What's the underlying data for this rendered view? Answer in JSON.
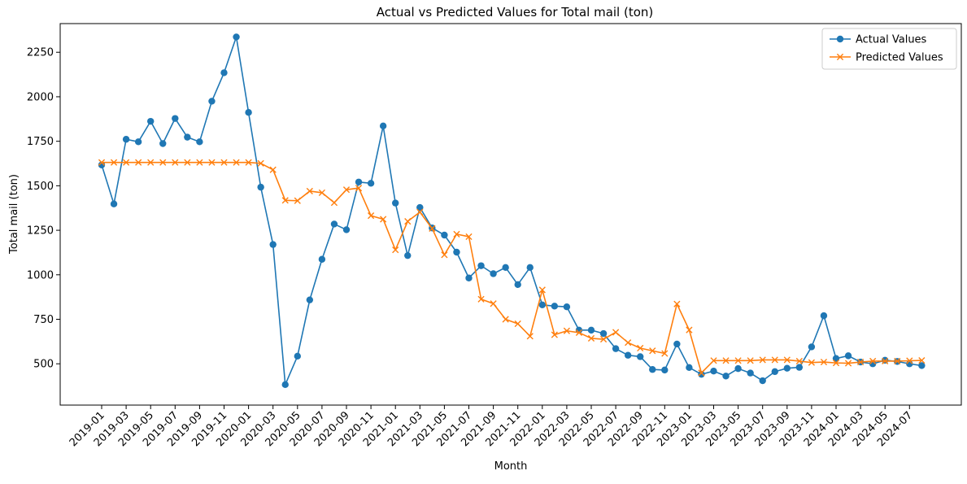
{
  "chart_data": {
    "type": "line",
    "title": "Actual vs Predicted Values for Total mail (ton)",
    "xlabel": "Month",
    "ylabel": "Total mail (ton)",
    "ylim": [
      268,
      2411
    ],
    "yticks": [
      500,
      750,
      1000,
      1250,
      1500,
      1750,
      2000,
      2250
    ],
    "ytick_labels": [
      "500",
      "750",
      "1000",
      "1250",
      "1500",
      "1750",
      "2000",
      "2250"
    ],
    "x": [
      "2019-01",
      "2019-02",
      "2019-03",
      "2019-04",
      "2019-05",
      "2019-06",
      "2019-07",
      "2019-08",
      "2019-09",
      "2019-10",
      "2019-11",
      "2019-12",
      "2020-01",
      "2020-02",
      "2020-03",
      "2020-04",
      "2020-05",
      "2020-06",
      "2020-07",
      "2020-08",
      "2020-09",
      "2020-10",
      "2020-11",
      "2020-12",
      "2021-01",
      "2021-02",
      "2021-03",
      "2021-04",
      "2021-05",
      "2021-06",
      "2021-07",
      "2021-08",
      "2021-09",
      "2021-10",
      "2021-11",
      "2021-12",
      "2022-01",
      "2022-02",
      "2022-03",
      "2022-04",
      "2022-05",
      "2022-06",
      "2022-07",
      "2022-08",
      "2022-09",
      "2022-10",
      "2022-11",
      "2022-12",
      "2023-01",
      "2023-02",
      "2023-03",
      "2023-04",
      "2023-05",
      "2023-06",
      "2023-07",
      "2023-08",
      "2023-09",
      "2023-10",
      "2023-11",
      "2023-12",
      "2024-01",
      "2024-02",
      "2024-03",
      "2024-04",
      "2024-05",
      "2024-06",
      "2024-07",
      "2024-08"
    ],
    "xtick_labels": [
      "2019-01",
      "2019-03",
      "2019-05",
      "2019-07",
      "2019-09",
      "2019-11",
      "2020-01",
      "2020-03",
      "2020-05",
      "2020-07",
      "2020-09",
      "2020-11",
      "2021-01",
      "2021-03",
      "2021-05",
      "2021-07",
      "2021-09",
      "2021-11",
      "2022-01",
      "2022-03",
      "2022-05",
      "2022-07",
      "2022-09",
      "2022-11",
      "2023-01",
      "2023-03",
      "2023-05",
      "2023-07",
      "2023-09",
      "2023-11",
      "2024-01",
      "2024-03",
      "2024-05",
      "2024-07"
    ],
    "series": [
      {
        "name": "Actual Values",
        "color": "#1f77b4",
        "marker": "circle",
        "values": [
          1617,
          1398,
          1761,
          1747,
          1862,
          1737,
          1878,
          1773,
          1747,
          1975,
          2135,
          2336,
          1912,
          1492,
          1170,
          383,
          543,
          859,
          1087,
          1285,
          1253,
          1521,
          1514,
          1836,
          1403,
          1108,
          1378,
          1263,
          1223,
          1127,
          982,
          1051,
          1006,
          1041,
          945,
          1041,
          831,
          824,
          820,
          689,
          689,
          670,
          585,
          548,
          540,
          468,
          465,
          611,
          479,
          441,
          459,
          431,
          473,
          448,
          405,
          456,
          475,
          480,
          595,
          770,
          530,
          545,
          510,
          500,
          520,
          513,
          500,
          490
        ]
      },
      {
        "name": "Predicted Values",
        "color": "#ff7f0e",
        "marker": "x",
        "values": [
          1631,
          1631,
          1631,
          1631,
          1631,
          1631,
          1631,
          1631,
          1631,
          1631,
          1631,
          1631,
          1631,
          1626,
          1590,
          1418,
          1416,
          1470,
          1461,
          1405,
          1478,
          1487,
          1332,
          1312,
          1140,
          1300,
          1352,
          1260,
          1112,
          1228,
          1214,
          863,
          838,
          750,
          725,
          655,
          915,
          663,
          685,
          675,
          643,
          638,
          677,
          619,
          588,
          573,
          558,
          836,
          690,
          449,
          518,
          518,
          518,
          518,
          522,
          522,
          522,
          515,
          507,
          510,
          505,
          503,
          510,
          515,
          515,
          515,
          517,
          519
        ]
      }
    ],
    "legend": "top-right",
    "grid": false
  }
}
